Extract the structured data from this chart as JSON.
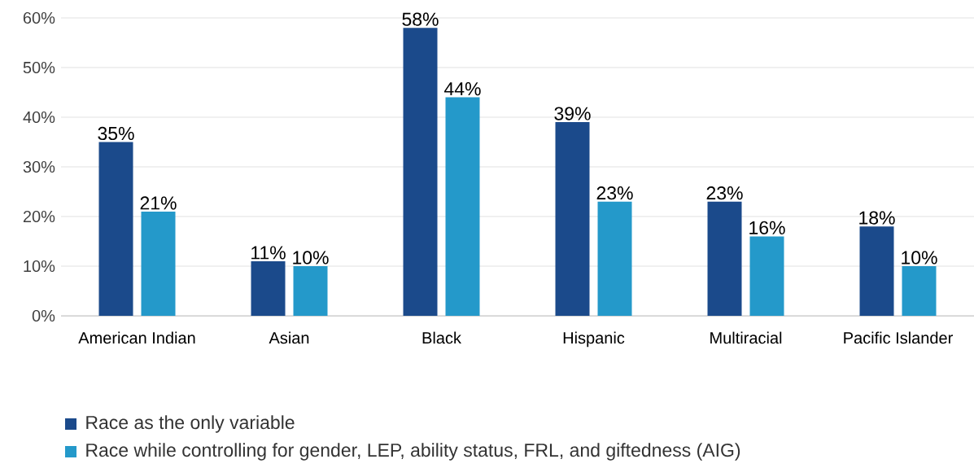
{
  "chart_data": {
    "type": "bar",
    "categories": [
      "American Indian",
      "Asian",
      "Black",
      "Hispanic",
      "Multiracial",
      "Pacific Islander"
    ],
    "series": [
      {
        "name": "Race as the only variable",
        "color": "#1b4a8b",
        "values": [
          35,
          11,
          58,
          39,
          23,
          18
        ],
        "value_labels": [
          "35%",
          "11%",
          "58%",
          "39%",
          "23%",
          "18%"
        ]
      },
      {
        "name": "Race while controlling for gender, LEP, ability status, FRL, and giftedness (AIG)",
        "color": "#2499ca",
        "values": [
          21,
          10,
          44,
          23,
          16,
          10
        ],
        "value_labels": [
          "21%",
          "10%",
          "44%",
          "23%",
          "16%",
          "10%"
        ]
      }
    ],
    "ylim": [
      0,
      60
    ],
    "yticks": [
      {
        "value": 0,
        "label": "0%"
      },
      {
        "value": 10,
        "label": "10%"
      },
      {
        "value": 20,
        "label": "20%"
      },
      {
        "value": 30,
        "label": "30%"
      },
      {
        "value": 40,
        "label": "40%"
      },
      {
        "value": 50,
        "label": "50%"
      },
      {
        "value": 60,
        "label": "60%"
      }
    ],
    "grid": "y",
    "legend": "bottom left"
  }
}
